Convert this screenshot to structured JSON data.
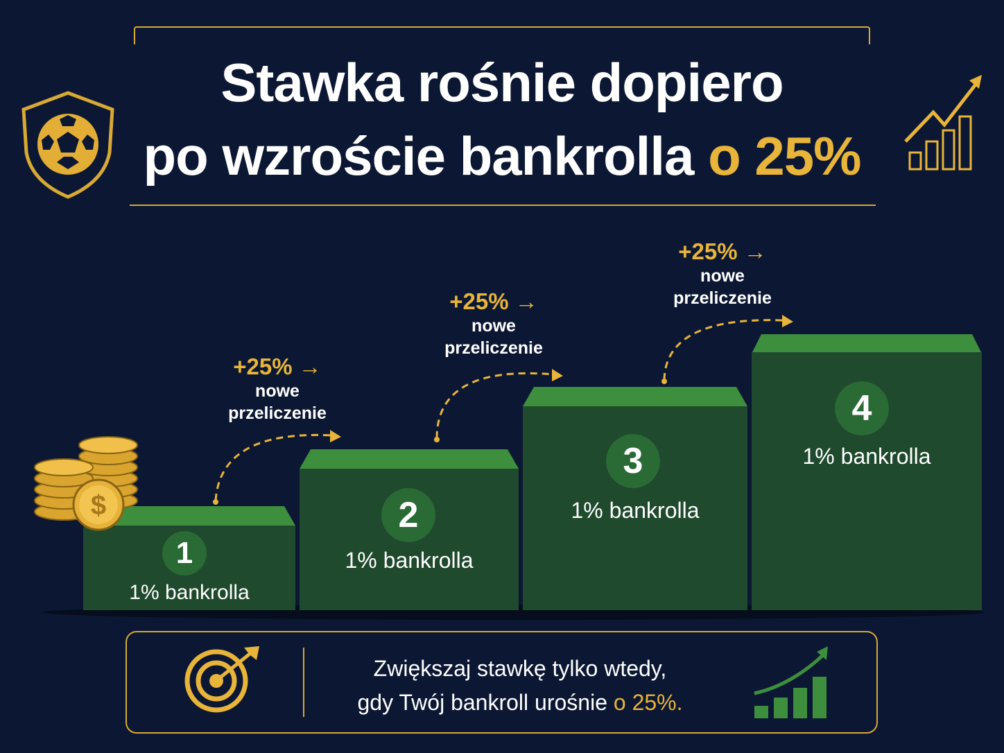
{
  "title": {
    "line1": "Stawka rośnie dopiero",
    "line2_main": "po wzroście bankrolla ",
    "line2_highlight": "o 25%"
  },
  "steps": [
    {
      "number": "1",
      "label": "1% bankrolla"
    },
    {
      "number": "2",
      "label": "1% bankrolla"
    },
    {
      "number": "3",
      "label": "1% bankrolla"
    },
    {
      "number": "4",
      "label": "1% bankrolla"
    }
  ],
  "transitions": [
    {
      "percent": "+25% →",
      "line1": "nowe",
      "line2": "przeliczenie"
    },
    {
      "percent": "+25% →",
      "line1": "nowe",
      "line2": "przeliczenie"
    },
    {
      "percent": "+25% →",
      "line1": "nowe",
      "line2": "przeliczenie"
    }
  ],
  "footer": {
    "line1": "Zwiększaj stawkę tylko wtedy,",
    "line2_main": "gdy Twój bankroll urośnie ",
    "line2_highlight": "o 25%."
  },
  "icons": {
    "shield": "shield-soccer-ball-icon",
    "growth_top": "growth-chart-arrow-icon",
    "coins": "coin-stack-dollar-icon",
    "target": "target-arrow-icon",
    "growth_bottom": "green-growth-chart-icon"
  },
  "colors": {
    "background": "#0c1833",
    "gold": "#e8b43a",
    "step_body": "#1f4a2d",
    "step_top": "#3e8f3d"
  }
}
